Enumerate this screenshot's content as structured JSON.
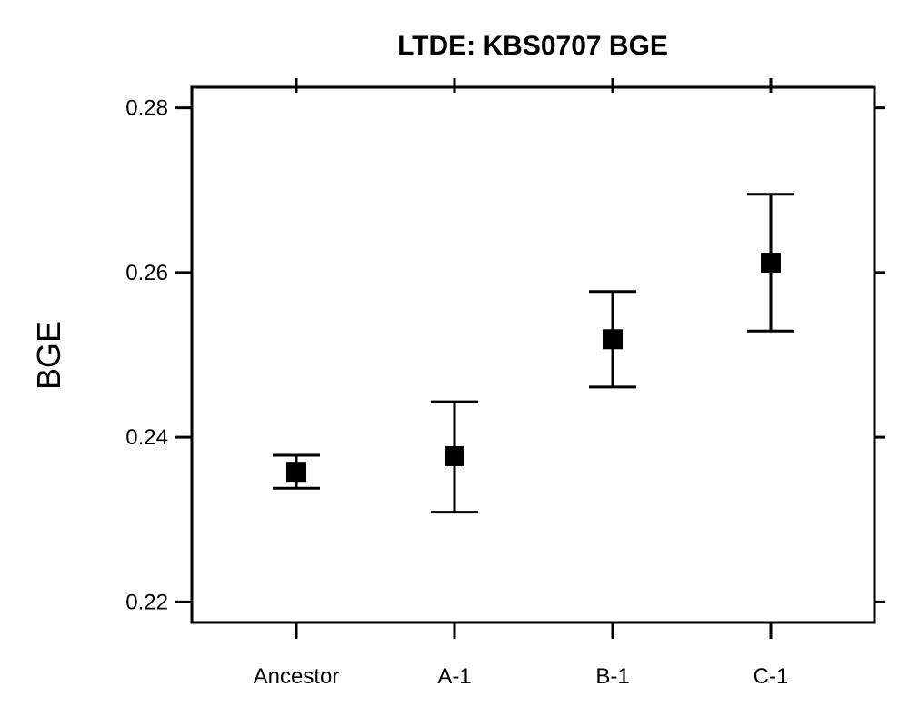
{
  "chart_data": {
    "type": "scatter",
    "title": "LTDE: KBS0707 BGE",
    "xlabel": "",
    "ylabel": "BGE",
    "categories": [
      "Ancestor",
      "A-1",
      "B-1",
      "C-1"
    ],
    "values": [
      0.2358,
      0.2377,
      0.2519,
      0.2612
    ],
    "error_low": [
      0.2338,
      0.2309,
      0.2461,
      0.2529
    ],
    "error_high": [
      0.2378,
      0.2443,
      0.2577,
      0.2695
    ],
    "ylim": [
      0.2175,
      0.2825
    ],
    "yticks": [
      0.22,
      0.24,
      0.26,
      0.28
    ],
    "ytick_labels": [
      "0.22",
      "0.24",
      "0.26",
      "0.28"
    ],
    "grid": false,
    "marker_color": "#000000"
  }
}
